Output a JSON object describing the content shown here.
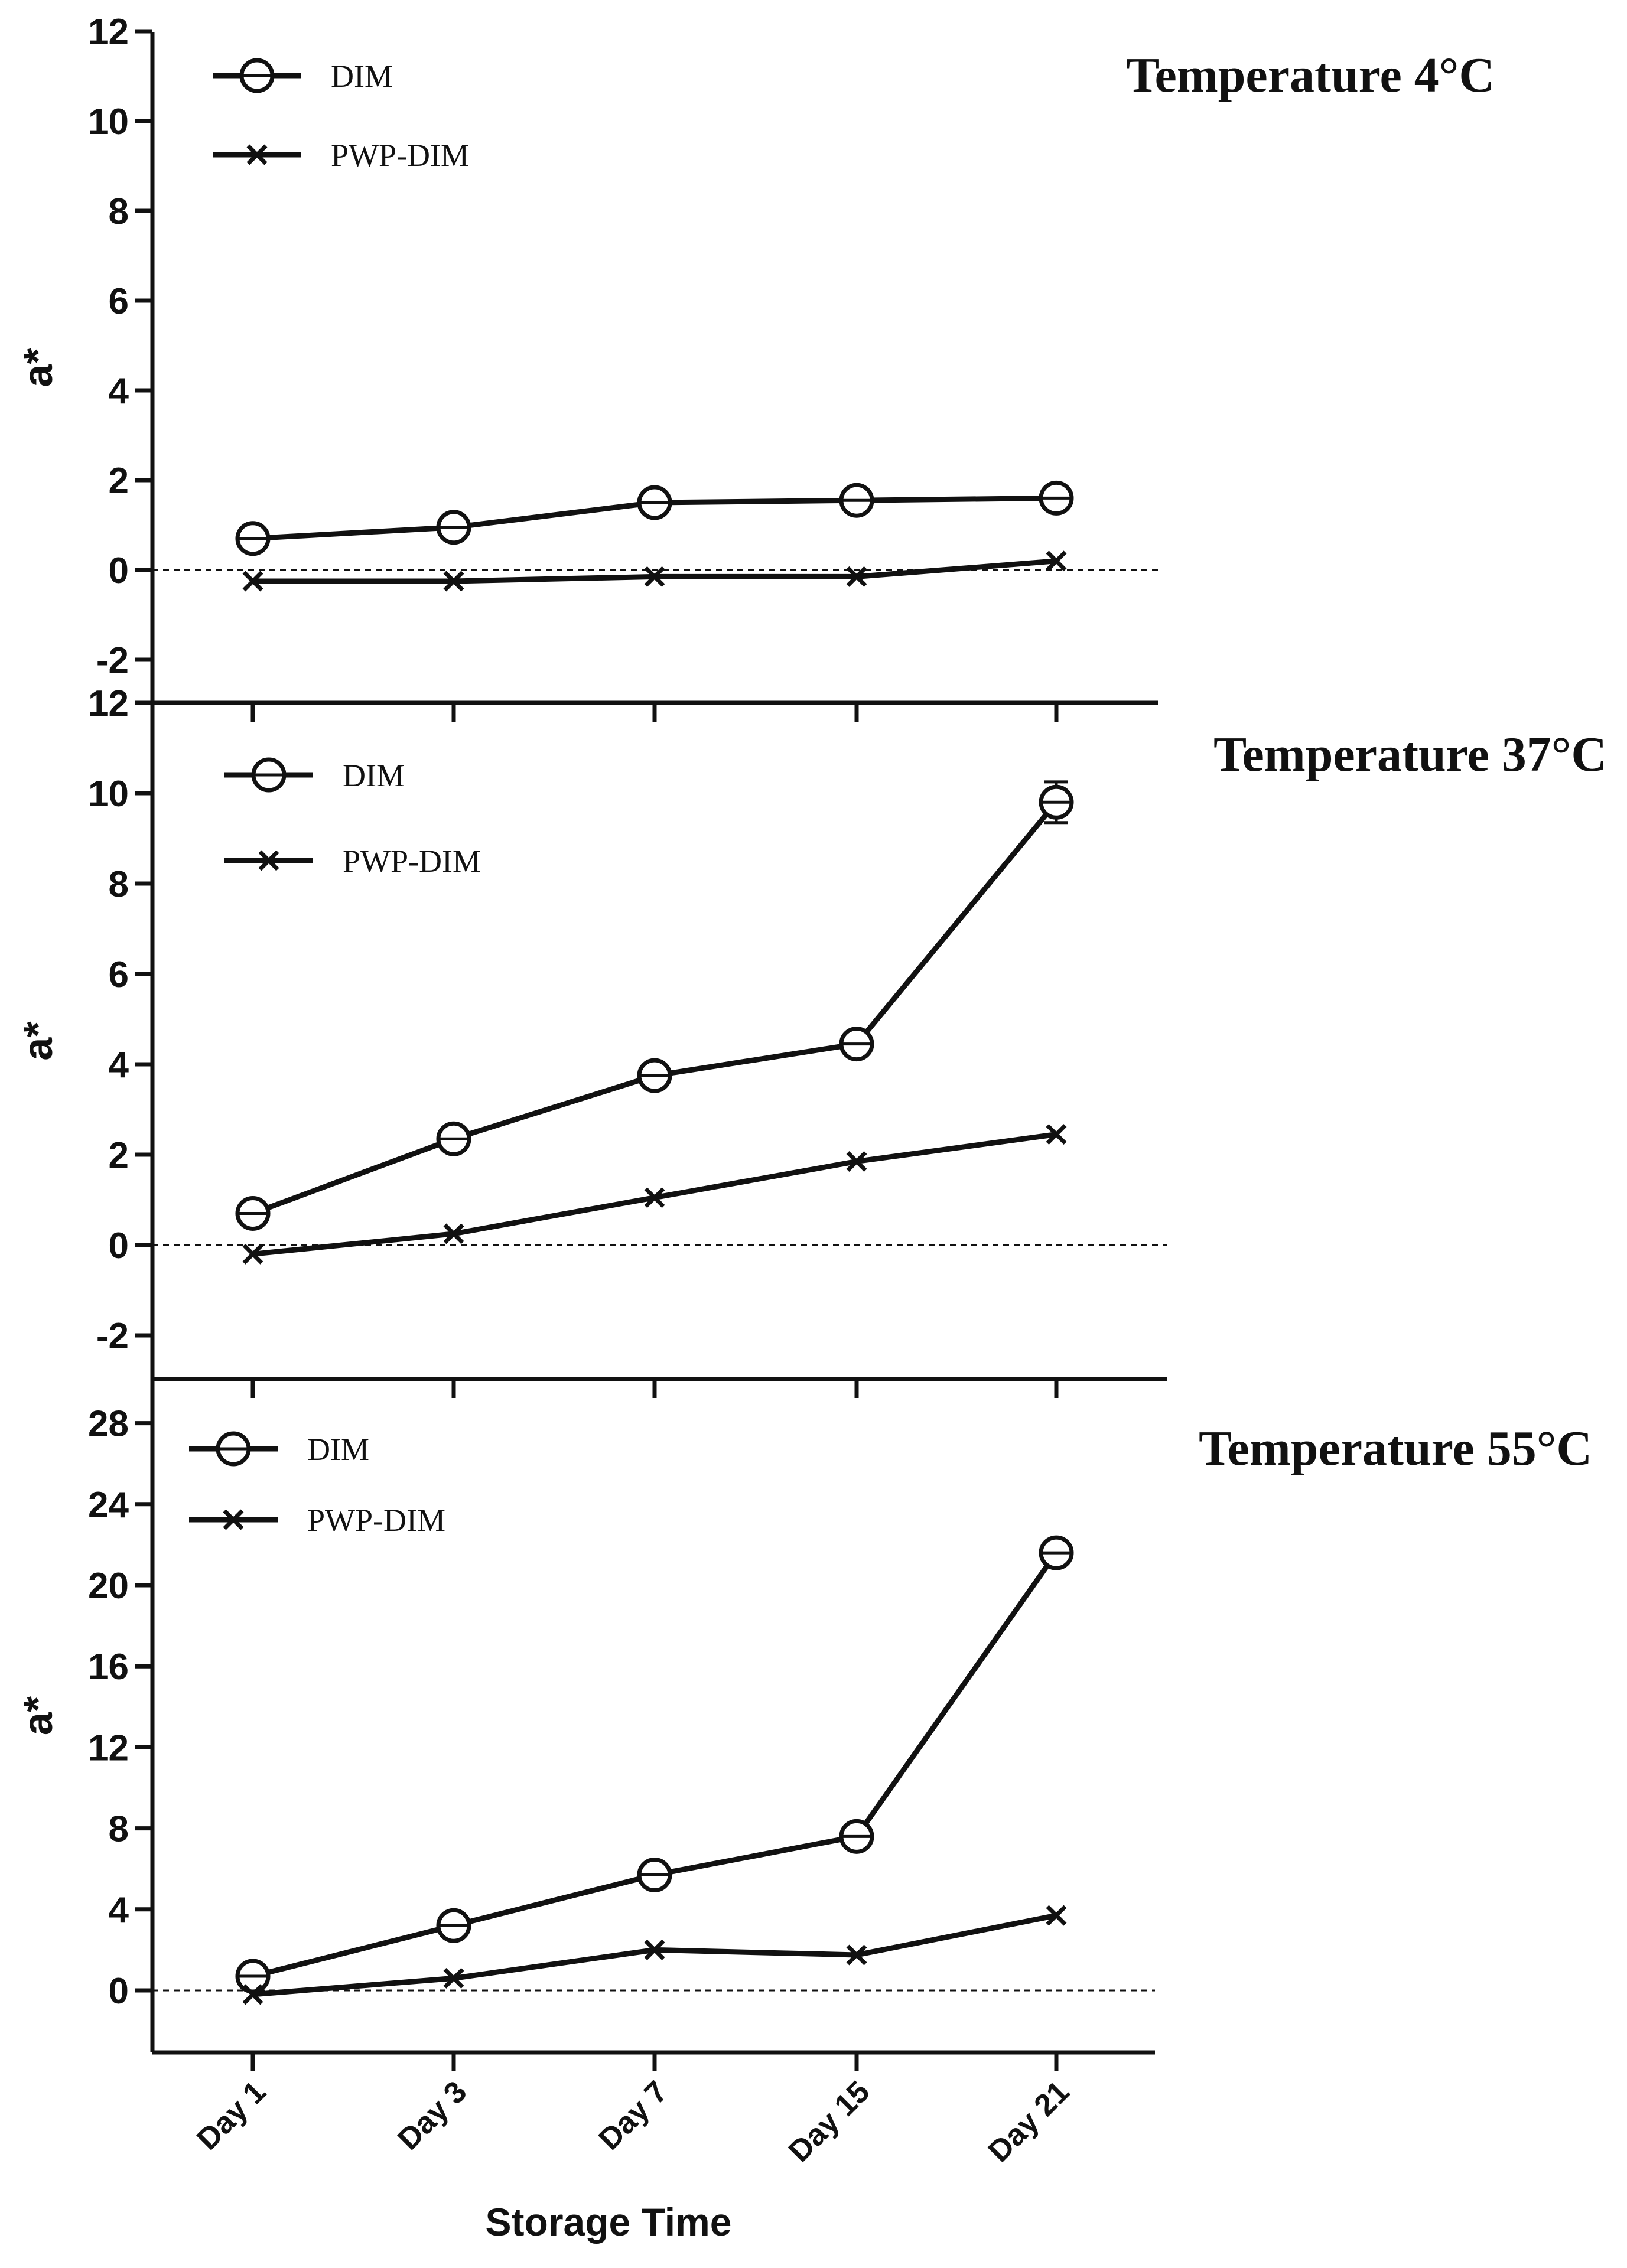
{
  "chart_data": [
    {
      "type": "line",
      "title": "Temperature 4°C",
      "ylabel": "a*",
      "xlabel": "Storage Time",
      "categories": [
        "Day 1",
        "Day 3",
        "Day 7",
        "Day 15",
        "Day 21"
      ],
      "ylim": [
        -3,
        12
      ],
      "yticks": [
        -2,
        0,
        2,
        4,
        6,
        8,
        10,
        12
      ],
      "reference_line": 0,
      "series": [
        {
          "name": "DIM",
          "marker": "circle",
          "values": [
            0.7,
            0.95,
            1.5,
            1.55,
            1.6
          ]
        },
        {
          "name": "PWP-DIM",
          "marker": "x",
          "values": [
            -0.25,
            -0.25,
            -0.15,
            -0.15,
            0.2
          ]
        }
      ]
    },
    {
      "type": "line",
      "title": "Temperature 37°C",
      "ylabel": "a*",
      "xlabel": "Storage Time",
      "categories": [
        "Day 1",
        "Day 3",
        "Day 7",
        "Day 15",
        "Day 21"
      ],
      "ylim": [
        -3,
        12
      ],
      "yticks": [
        -2,
        0,
        2,
        4,
        6,
        8,
        10,
        12
      ],
      "reference_line": 0,
      "series": [
        {
          "name": "DIM",
          "marker": "circle",
          "values": [
            0.7,
            2.35,
            3.75,
            4.45,
            9.8
          ],
          "errors": [
            0,
            0,
            0,
            0,
            0.45
          ]
        },
        {
          "name": "PWP-DIM",
          "marker": "x",
          "values": [
            -0.2,
            0.25,
            1.05,
            1.85,
            2.45
          ]
        }
      ]
    },
    {
      "type": "line",
      "title": "Temperature 55°C",
      "ylabel": "a*",
      "xlabel": "Storage Time",
      "categories": [
        "Day 1",
        "Day 3",
        "Day 7",
        "Day 15",
        "Day 21"
      ],
      "ylim": [
        -3,
        29
      ],
      "yticks": [
        0,
        4,
        8,
        12,
        16,
        20,
        24,
        28
      ],
      "reference_line": 0,
      "series": [
        {
          "name": "DIM",
          "marker": "circle",
          "values": [
            0.7,
            3.2,
            5.7,
            7.6,
            21.6
          ]
        },
        {
          "name": "PWP-DIM",
          "marker": "x",
          "values": [
            -0.2,
            0.6,
            2.0,
            1.75,
            3.7
          ]
        }
      ]
    }
  ]
}
